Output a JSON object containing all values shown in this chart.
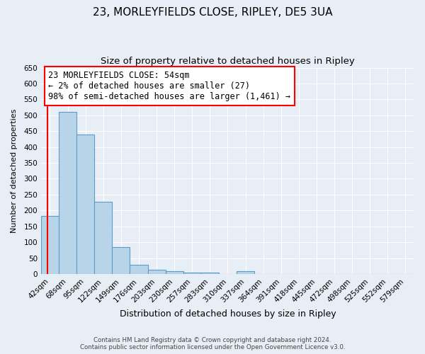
{
  "title": "23, MORLEYFIELDS CLOSE, RIPLEY, DE5 3UA",
  "subtitle": "Size of property relative to detached houses in Ripley",
  "xlabel": "Distribution of detached houses by size in Ripley",
  "ylabel": "Number of detached properties",
  "bar_color": "#b8d4e8",
  "bar_edge_color": "#5a9dc8",
  "categories": [
    "42sqm",
    "68sqm",
    "95sqm",
    "122sqm",
    "149sqm",
    "176sqm",
    "203sqm",
    "230sqm",
    "257sqm",
    "283sqm",
    "310sqm",
    "337sqm",
    "364sqm",
    "391sqm",
    "418sqm",
    "445sqm",
    "472sqm",
    "498sqm",
    "525sqm",
    "552sqm",
    "579sqm"
  ],
  "values": [
    183,
    510,
    440,
    228,
    85,
    28,
    13,
    8,
    5,
    5,
    0,
    8,
    0,
    0,
    0,
    0,
    0,
    0,
    0,
    0,
    0
  ],
  "ylim": [
    0,
    650
  ],
  "yticks": [
    0,
    50,
    100,
    150,
    200,
    250,
    300,
    350,
    400,
    450,
    500,
    550,
    600,
    650
  ],
  "annotation_title": "23 MORLEYFIELDS CLOSE: 54sqm",
  "annotation_line1": "← 2% of detached houses are smaller (27)",
  "annotation_line2": "98% of semi-detached houses are larger (1,461) →",
  "background_color": "#e8eef5",
  "plot_bg_color": "#e8eef5",
  "footer_line1": "Contains HM Land Registry data © Crown copyright and database right 2024.",
  "footer_line2": "Contains public sector information licensed under the Open Government Licence v3.0.",
  "title_fontsize": 11,
  "subtitle_fontsize": 9.5,
  "xlabel_fontsize": 9,
  "ylabel_fontsize": 8,
  "tick_fontsize": 7.5,
  "annotation_fontsize": 8.5
}
